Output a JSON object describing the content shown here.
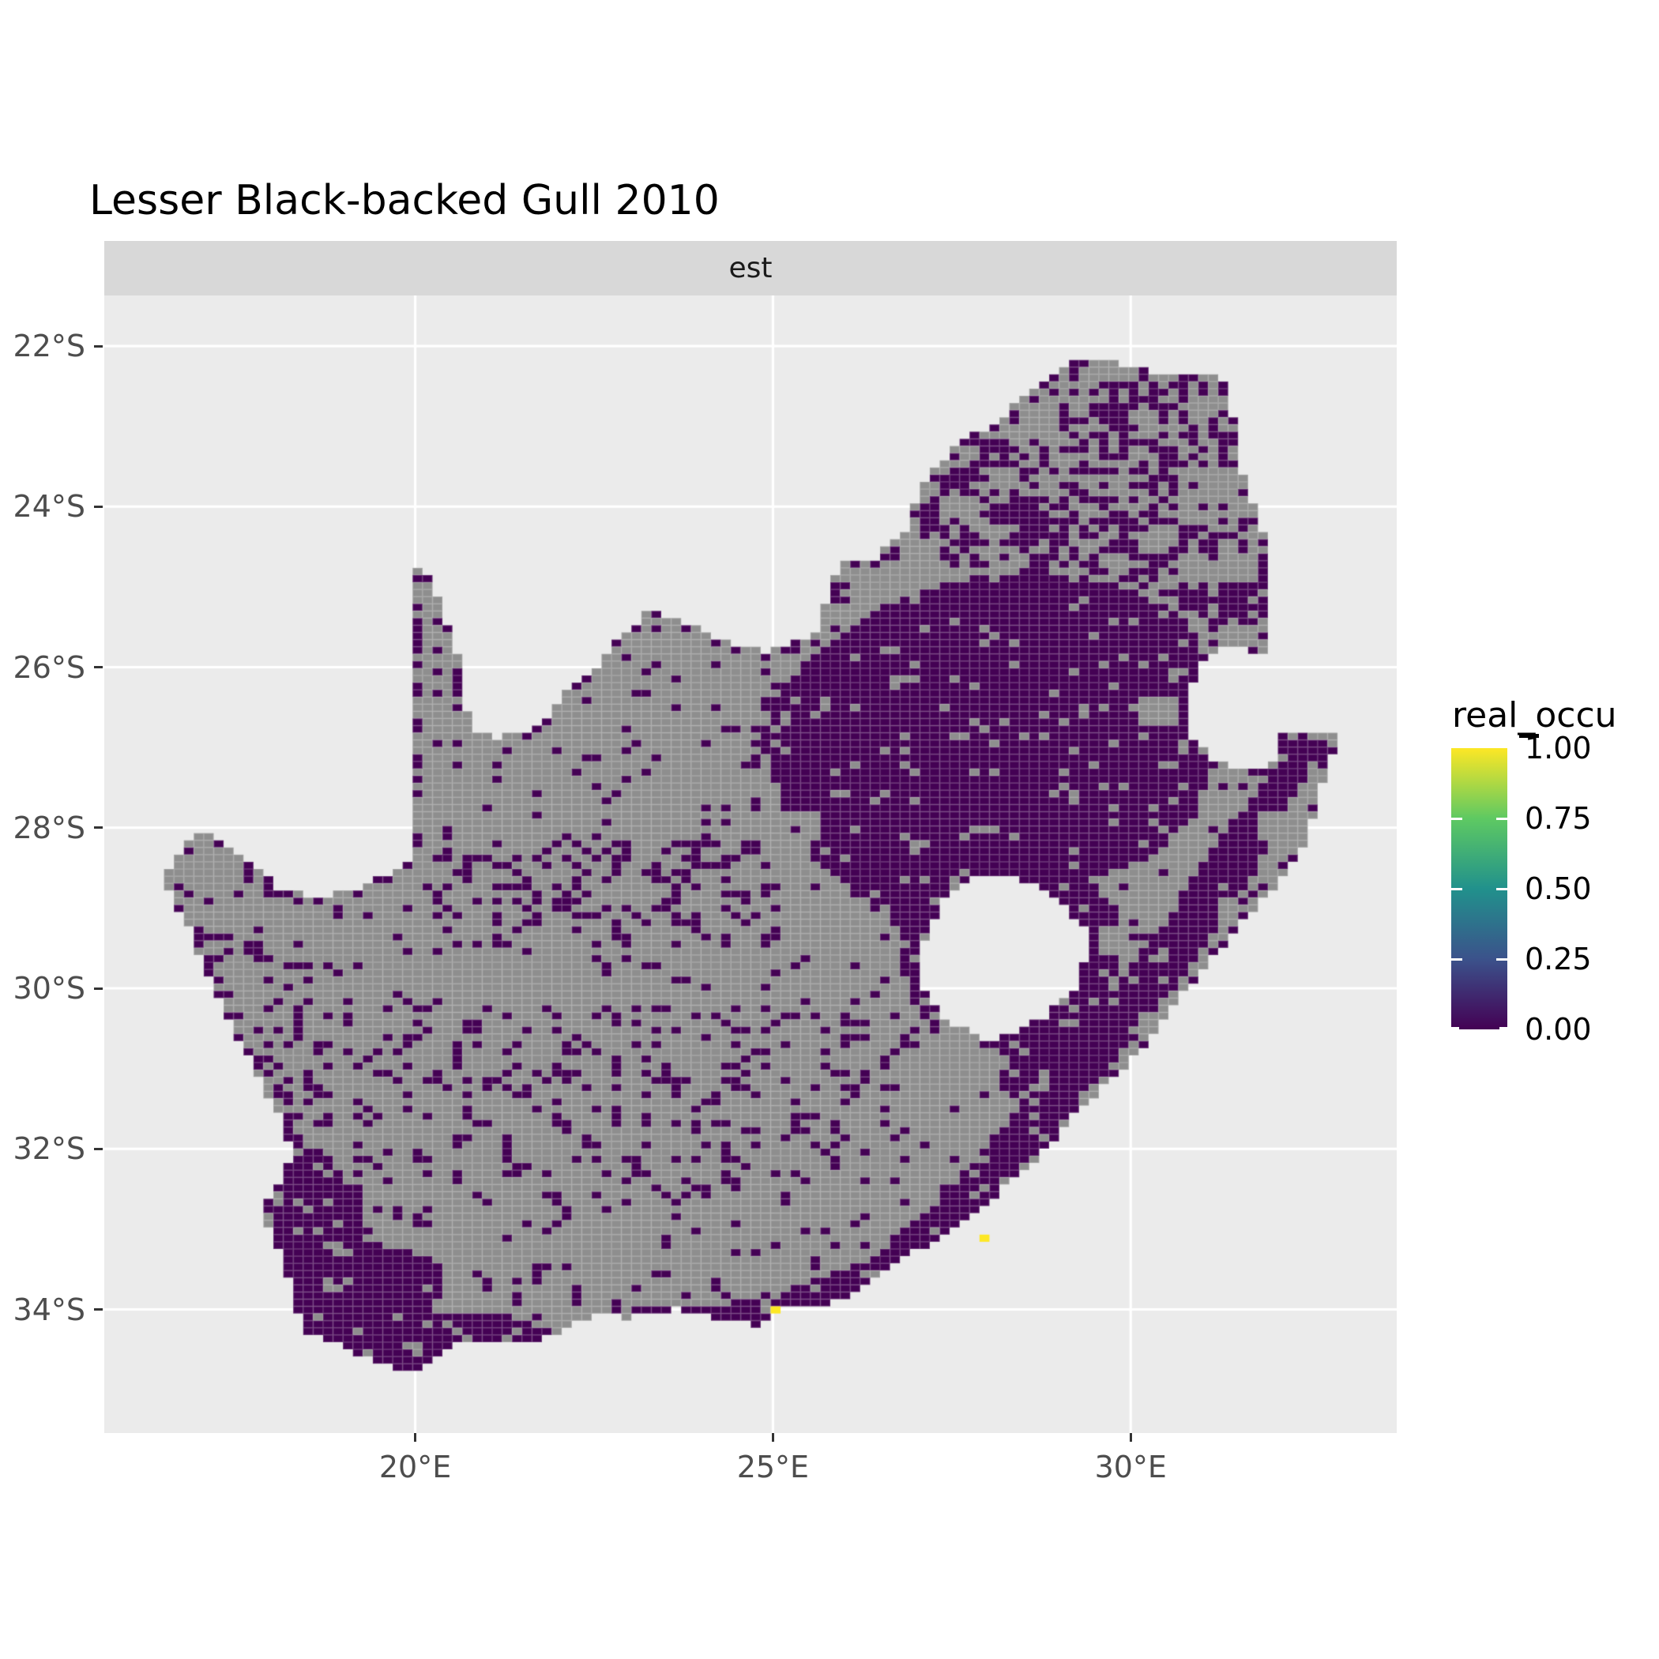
{
  "title": "Lesser Black-backed Gull 2010",
  "facet_strip": {
    "label": "est"
  },
  "axes": {
    "x": {
      "ticks": [
        {
          "label": "20°E",
          "lon": 20
        },
        {
          "label": "25°E",
          "lon": 25
        },
        {
          "label": "30°E",
          "lon": 30
        }
      ]
    },
    "y": {
      "ticks": [
        {
          "label": "22°S",
          "lat": -22
        },
        {
          "label": "24°S",
          "lat": -24
        },
        {
          "label": "26°S",
          "lat": -26
        },
        {
          "label": "28°S",
          "lat": -28
        },
        {
          "label": "30°S",
          "lat": -30
        },
        {
          "label": "32°S",
          "lat": -32
        },
        {
          "label": "34°S",
          "lat": -34
        }
      ]
    }
  },
  "legend": {
    "title": "real_occu",
    "labels": [
      "1.00",
      "0.75",
      "0.50",
      "0.25",
      "0.00"
    ],
    "values": [
      1.0,
      0.75,
      0.5,
      0.25,
      0.0
    ],
    "gradient_stops": [
      {
        "value": 0.0,
        "color": "#440154"
      },
      {
        "value": 0.25,
        "color": "#3b528b"
      },
      {
        "value": 0.5,
        "color": "#21918c"
      },
      {
        "value": 0.75,
        "color": "#5ec962"
      },
      {
        "value": 1.0,
        "color": "#fde725"
      }
    ]
  },
  "colors": {
    "page_bg": "#ffffff",
    "panel_bg": "#ebebeb",
    "strip_bg": "#d8d8d8",
    "gridline": "#ffffff",
    "na_cell": "#8e8e8e",
    "zero_cell": "#440154",
    "one_cell": "#fde725",
    "cell_border": "rgba(255,255,255,0.16)",
    "axis_text": "#4d4d4d",
    "tick_mark": "#333333",
    "title_text": "#000000"
  },
  "chart_data": {
    "type": "heatmap",
    "subtype": "raster-occupancy-map",
    "title": "Lesser Black-backed Gull 2010",
    "facet": "est",
    "variable": "real_occu",
    "region": "South Africa",
    "xlabel": "",
    "ylabel": "",
    "lon_range": [
      15.655,
      33.718
    ],
    "lat_range": [
      -35.54,
      -21.37
    ],
    "grid_on": true,
    "legend_position": "right",
    "value_scale": {
      "min": 0.0,
      "max": 1.0,
      "palette": "viridis",
      "na_color": "#8e8e8e"
    },
    "cell_size_deg": {
      "lon": 0.139,
      "lat": 0.0893
    },
    "occupied_cells": [
      {
        "lon": 27.91,
        "lat": -33.08,
        "value": 1.0
      },
      {
        "lon": 24.97,
        "lat": -34.03,
        "value": 1.0
      }
    ],
    "outline": [
      [
        16.45,
        -28.58
      ],
      [
        17.0,
        -28.03
      ],
      [
        17.35,
        -28.2
      ],
      [
        17.6,
        -28.4
      ],
      [
        18.1,
        -28.75
      ],
      [
        18.7,
        -28.88
      ],
      [
        19.3,
        -28.72
      ],
      [
        19.7,
        -28.55
      ],
      [
        19.99,
        -28.42
      ],
      [
        19.99,
        -24.77
      ],
      [
        20.25,
        -24.95
      ],
      [
        20.45,
        -25.45
      ],
      [
        20.62,
        -25.95
      ],
      [
        20.66,
        -26.45
      ],
      [
        20.85,
        -26.84
      ],
      [
        21.15,
        -26.87
      ],
      [
        21.65,
        -26.8
      ],
      [
        22.05,
        -26.37
      ],
      [
        22.55,
        -26.0
      ],
      [
        22.88,
        -25.62
      ],
      [
        23.25,
        -25.32
      ],
      [
        23.66,
        -25.38
      ],
      [
        24.2,
        -25.65
      ],
      [
        24.9,
        -25.81
      ],
      [
        25.55,
        -25.62
      ],
      [
        25.8,
        -25.1
      ],
      [
        25.9,
        -24.72
      ],
      [
        26.45,
        -24.63
      ],
      [
        26.85,
        -24.28
      ],
      [
        27.15,
        -23.62
      ],
      [
        27.55,
        -23.25
      ],
      [
        28.1,
        -22.95
      ],
      [
        28.6,
        -22.58
      ],
      [
        29.05,
        -22.23
      ],
      [
        29.45,
        -22.15
      ],
      [
        29.78,
        -22.2
      ],
      [
        30.35,
        -22.32
      ],
      [
        31.08,
        -22.34
      ],
      [
        31.3,
        -22.42
      ],
      [
        31.45,
        -23.0
      ],
      [
        31.6,
        -23.7
      ],
      [
        31.85,
        -24.3
      ],
      [
        31.98,
        -24.9
      ],
      [
        31.96,
        -25.55
      ],
      [
        31.98,
        -25.86
      ],
      [
        31.35,
        -25.72
      ],
      [
        30.95,
        -25.95
      ],
      [
        30.8,
        -26.4
      ],
      [
        30.85,
        -26.85
      ],
      [
        31.1,
        -27.12
      ],
      [
        31.45,
        -27.3
      ],
      [
        31.95,
        -27.3
      ],
      [
        32.1,
        -26.86
      ],
      [
        32.89,
        -26.86
      ],
      [
        32.62,
        -27.6
      ],
      [
        32.45,
        -28.15
      ],
      [
        32.15,
        -28.6
      ],
      [
        31.75,
        -29.0
      ],
      [
        31.25,
        -29.5
      ],
      [
        30.7,
        -30.1
      ],
      [
        30.25,
        -30.65
      ],
      [
        29.85,
        -31.05
      ],
      [
        29.3,
        -31.5
      ],
      [
        28.75,
        -32.05
      ],
      [
        28.1,
        -32.6
      ],
      [
        27.45,
        -33.05
      ],
      [
        26.85,
        -33.35
      ],
      [
        26.25,
        -33.75
      ],
      [
        25.65,
        -33.98
      ],
      [
        25.0,
        -33.96
      ],
      [
        24.85,
        -34.2
      ],
      [
        24.2,
        -34.1
      ],
      [
        23.6,
        -33.99
      ],
      [
        23.0,
        -34.1
      ],
      [
        22.5,
        -34.05
      ],
      [
        21.9,
        -34.35
      ],
      [
        21.2,
        -34.42
      ],
      [
        20.5,
        -34.45
      ],
      [
        19.98,
        -34.8
      ],
      [
        19.35,
        -34.62
      ],
      [
        18.82,
        -34.38
      ],
      [
        18.46,
        -34.3
      ],
      [
        18.33,
        -33.92
      ],
      [
        18.1,
        -33.3
      ],
      [
        17.85,
        -32.75
      ],
      [
        18.3,
        -32.1
      ],
      [
        18.1,
        -31.6
      ],
      [
        17.75,
        -31.0
      ],
      [
        17.35,
        -30.35
      ],
      [
        17.05,
        -29.7
      ],
      [
        16.75,
        -29.1
      ]
    ],
    "lesotho_hole": [
      [
        27.02,
        -29.62
      ],
      [
        27.35,
        -28.95
      ],
      [
        27.75,
        -28.63
      ],
      [
        28.35,
        -28.6
      ],
      [
        28.95,
        -28.85
      ],
      [
        29.42,
        -29.3
      ],
      [
        29.28,
        -29.95
      ],
      [
        28.8,
        -30.35
      ],
      [
        28.05,
        -30.67
      ],
      [
        27.35,
        -30.35
      ],
      [
        27.05,
        -29.95
      ]
    ],
    "zero_regions": [
      [
        [
          17.95,
          -31.55
        ],
        [
          18.62,
          -31.95
        ],
        [
          19.25,
          -32.6
        ],
        [
          19.4,
          -33.25
        ],
        [
          20.15,
          -33.3
        ],
        [
          20.45,
          -33.6
        ],
        [
          20.2,
          -34.05
        ],
        [
          21.0,
          -34.05
        ],
        [
          21.8,
          -34.12
        ],
        [
          21.9,
          -34.4
        ],
        [
          20.45,
          -34.95
        ],
        [
          19.3,
          -34.7
        ],
        [
          18.4,
          -34.45
        ],
        [
          18.15,
          -33.6
        ],
        [
          17.78,
          -32.6
        ]
      ],
      [
        [
          21.9,
          -34.4
        ],
        [
          22.5,
          -34.2
        ],
        [
          23.3,
          -34.0
        ],
        [
          24.2,
          -33.95
        ],
        [
          25.0,
          -33.8
        ],
        [
          25.65,
          -33.6
        ],
        [
          26.4,
          -33.35
        ],
        [
          27.2,
          -33.0
        ],
        [
          27.6,
          -32.85
        ],
        [
          27.0,
          -33.45
        ],
        [
          26.2,
          -33.95
        ],
        [
          25.2,
          -34.1
        ],
        [
          24.4,
          -34.3
        ],
        [
          23.4,
          -34.25
        ],
        [
          22.4,
          -34.3
        ]
      ],
      [
        [
          26.8,
          -33.6
        ],
        [
          27.9,
          -32.85
        ],
        [
          28.8,
          -31.95
        ],
        [
          29.6,
          -31.1
        ],
        [
          30.3,
          -30.35
        ],
        [
          31.0,
          -29.5
        ],
        [
          31.7,
          -28.6
        ],
        [
          32.2,
          -27.85
        ],
        [
          32.55,
          -27.15
        ],
        [
          32.89,
          -26.87
        ],
        [
          32.1,
          -26.87
        ],
        [
          31.95,
          -27.35
        ],
        [
          31.45,
          -27.9
        ],
        [
          30.9,
          -28.6
        ],
        [
          30.2,
          -29.5
        ],
        [
          29.4,
          -30.4
        ],
        [
          28.6,
          -31.3
        ],
        [
          27.8,
          -32.2
        ],
        [
          27.0,
          -32.9
        ],
        [
          26.3,
          -33.4
        ]
      ],
      [
        [
          24.85,
          -26.9
        ],
        [
          25.1,
          -26.2
        ],
        [
          25.65,
          -25.85
        ],
        [
          26.2,
          -25.45
        ],
        [
          26.9,
          -25.1
        ],
        [
          27.7,
          -24.9
        ],
        [
          28.5,
          -24.78
        ],
        [
          29.3,
          -24.85
        ],
        [
          30.0,
          -25.05
        ],
        [
          30.55,
          -25.25
        ],
        [
          31.0,
          -25.65
        ],
        [
          30.88,
          -26.2
        ],
        [
          30.82,
          -26.9
        ],
        [
          31.15,
          -27.25
        ],
        [
          30.85,
          -27.9
        ],
        [
          30.3,
          -28.35
        ],
        [
          29.6,
          -28.6
        ],
        [
          28.9,
          -28.5
        ],
        [
          28.15,
          -28.45
        ],
        [
          27.5,
          -28.85
        ],
        [
          26.85,
          -29.15
        ],
        [
          26.15,
          -28.85
        ],
        [
          25.55,
          -28.35
        ],
        [
          25.1,
          -27.65
        ]
      ],
      [
        [
          26.55,
          -28.45
        ],
        [
          27.5,
          -28.18
        ],
        [
          28.55,
          -28.2
        ],
        [
          29.35,
          -28.55
        ],
        [
          29.95,
          -29.2
        ],
        [
          29.7,
          -30.1
        ],
        [
          29.1,
          -30.85
        ],
        [
          28.35,
          -31.35
        ],
        [
          27.6,
          -31.0
        ],
        [
          27.05,
          -30.3
        ],
        [
          26.6,
          -29.4
        ]
      ]
    ],
    "na_insets": [
      [
        [
          19.55,
          -32.1
        ],
        [
          20.75,
          -32.35
        ],
        [
          20.7,
          -33.25
        ],
        [
          19.5,
          -32.95
        ]
      ],
      [
        [
          20.95,
          -33.3
        ],
        [
          22.45,
          -33.42
        ],
        [
          22.35,
          -33.95
        ],
        [
          20.95,
          -33.85
        ]
      ],
      [
        [
          27.15,
          -30.55
        ],
        [
          28.35,
          -30.85
        ],
        [
          27.95,
          -31.55
        ],
        [
          27.0,
          -31.15
        ]
      ]
    ],
    "mixed_region": [
      [
        26.9,
        -24.35
      ],
      [
        27.5,
        -23.4
      ],
      [
        28.2,
        -22.95
      ],
      [
        29.0,
        -22.35
      ],
      [
        30.1,
        -22.45
      ],
      [
        31.05,
        -22.45
      ],
      [
        31.35,
        -23.1
      ],
      [
        31.55,
        -23.8
      ],
      [
        31.85,
        -24.5
      ],
      [
        31.95,
        -25.4
      ],
      [
        31.1,
        -25.55
      ],
      [
        30.4,
        -25.1
      ],
      [
        29.5,
        -24.85
      ],
      [
        28.5,
        -24.7
      ],
      [
        27.6,
        -24.8
      ]
    ],
    "speckle": {
      "global_na_to_zero": 0.07,
      "zero_to_na": 0.08,
      "coast_fringe_zero": 0.38,
      "zones": [
        {
          "box": [
            19.0,
            26.4,
            -32.7,
            -30.2
          ],
          "p": 0.2
        },
        {
          "box": [
            16.6,
            18.9,
            -31.7,
            -29.2
          ],
          "p": 0.22
        },
        {
          "box": [
            20.3,
            24.9,
            -29.5,
            -28.2
          ],
          "p": 0.26
        },
        {
          "box": [
            24.3,
            26.6,
            -27.8,
            -25.4
          ],
          "p": 0.14
        },
        {
          "box": [
            20.9,
            22.5,
            -34.0,
            -33.3
          ],
          "p": 0.15
        }
      ]
    }
  }
}
